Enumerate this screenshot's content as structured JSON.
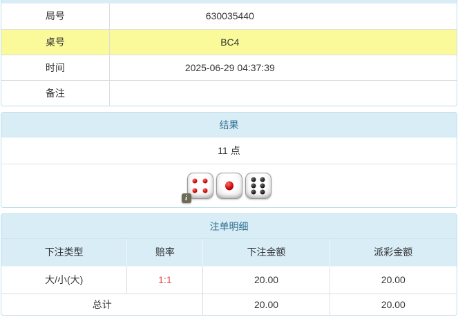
{
  "colors": {
    "panel_border": "#bfdeeb",
    "header_bg": "#d9edf7",
    "header_text": "#31708f",
    "cell_border": "#dddddd",
    "highlight_row_bg": "#fafa9b",
    "odds_red": "#dd4b4b",
    "text": "#333333"
  },
  "info_table": {
    "rows": [
      {
        "label": "局号",
        "value": "630035440",
        "highlight": false
      },
      {
        "label": "桌号",
        "value": "BC4",
        "highlight": true
      },
      {
        "label": "时间",
        "value": "2025-06-29 04:37:39",
        "highlight": false
      },
      {
        "label": "备注",
        "value": "",
        "highlight": false
      }
    ]
  },
  "result_panel": {
    "header": "结果",
    "points": "11 点",
    "dice": [
      {
        "value": 4,
        "pip_color": "red"
      },
      {
        "value": 1,
        "pip_color": "red"
      },
      {
        "value": 6,
        "pip_color": "black"
      }
    ],
    "info_badge": "i"
  },
  "bets_panel": {
    "header": "注单明细",
    "columns": [
      "下注类型",
      "赔率",
      "下注金额",
      "派彩金额"
    ],
    "rows": [
      {
        "bet_type": "大/小(大)",
        "odds": "1:1",
        "bet_amount": "20.00",
        "payout_amount": "20.00"
      }
    ],
    "total_row": {
      "label": "总计",
      "bet_amount": "20.00",
      "payout_amount": "20.00"
    }
  }
}
